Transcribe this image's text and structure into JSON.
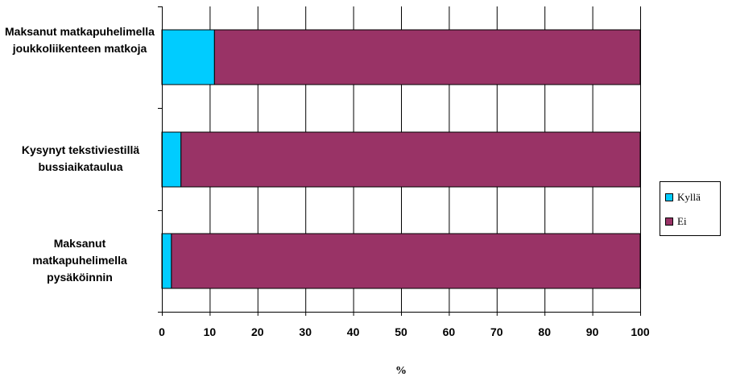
{
  "chart_data": {
    "type": "bar",
    "orientation": "horizontal",
    "stacked": true,
    "categories": [
      "Maksanut matkapuhelimella joukkoliikenteen matkoja",
      "Kysynyt tekstiviestillä bussiaikataulua",
      "Maksanut matkapuhelimella pysäköinnin"
    ],
    "series": [
      {
        "name": "Kyllä",
        "color": "#00ccff",
        "values": [
          11,
          4,
          2
        ]
      },
      {
        "name": "Ei",
        "color": "#993366",
        "values": [
          89,
          96,
          98
        ]
      }
    ],
    "xlabel": "%",
    "xlim": [
      0,
      100
    ],
    "xticks": [
      "0",
      "10",
      "20",
      "30",
      "40",
      "50",
      "60",
      "70",
      "80",
      "90",
      "100"
    ],
    "grid": "vertical",
    "legend_position": "right"
  }
}
